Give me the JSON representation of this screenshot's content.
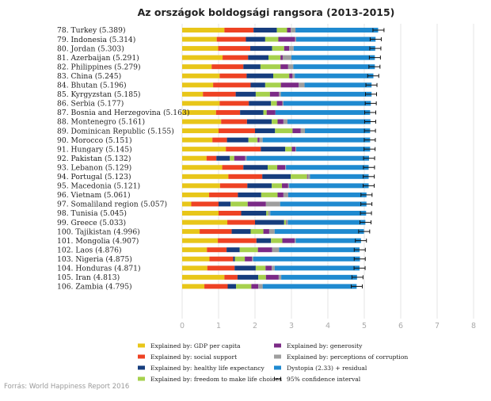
{
  "chart_data": {
    "type": "bar",
    "stacked": true,
    "orientation": "horizontal",
    "title": "Az országok boldogsági rangsora (2013-2015)",
    "xlim": [
      0,
      8
    ],
    "xticks": [
      "0",
      "1",
      "2",
      "3",
      "4",
      "5",
      "6",
      "7",
      "8"
    ],
    "source": "Forrás: World Happiness Report 2016",
    "series": [
      {
        "key": "gdp",
        "name": "Explained by: GDP per capita",
        "color": "#e8c619"
      },
      {
        "key": "social",
        "name": "Explained by: social support",
        "color": "#ee4223"
      },
      {
        "key": "health",
        "name": "Explained by: healthy life expectancy",
        "color": "#163d7d"
      },
      {
        "key": "freedom",
        "name": "Explained by: freedom to make life choices",
        "color": "#a6d14d"
      },
      {
        "key": "generosity",
        "name": "Explained by: generosity",
        "color": "#7b2a86"
      },
      {
        "key": "corruption",
        "name": "Explained by: perceptions of corruption",
        "color": "#9e9e9e"
      },
      {
        "key": "dystopia",
        "name": "Dystopia (2.33) + residual",
        "color": "#1f8ad0"
      }
    ],
    "ci_label": "95% confidence interval",
    "rows": [
      {
        "label": "78.  Turkey (5.389)",
        "total": 5.389,
        "parts": [
          1.16,
          0.8,
          0.64,
          0.28,
          0.1,
          0.13,
          2.27
        ]
      },
      {
        "label": "79.  Indonesia (5.314)",
        "total": 5.314,
        "parts": [
          0.95,
          0.8,
          0.53,
          0.36,
          0.46,
          0.03,
          2.18
        ]
      },
      {
        "label": "80.  Jordan (5.303)",
        "total": 5.303,
        "parts": [
          0.99,
          0.88,
          0.6,
          0.33,
          0.14,
          0.12,
          2.24
        ]
      },
      {
        "label": "81.  Azerbaijan (5.291)",
        "total": 5.291,
        "parts": [
          1.11,
          0.7,
          0.56,
          0.33,
          0.06,
          0.24,
          2.29
        ]
      },
      {
        "label": "82.  Philippines (5.279)",
        "total": 5.279,
        "parts": [
          0.81,
          0.87,
          0.47,
          0.55,
          0.21,
          0.14,
          2.24
        ]
      },
      {
        "label": "83.  China (5.245)",
        "total": 5.245,
        "parts": [
          1.03,
          0.74,
          0.73,
          0.44,
          0.09,
          0.06,
          2.16
        ]
      },
      {
        "label": "84.  Bhutan (5.196)",
        "total": 5.196,
        "parts": [
          0.85,
          1.03,
          0.4,
          0.43,
          0.49,
          0.16,
          1.84
        ]
      },
      {
        "label": "85.  Kyrgyzstan (5.185)",
        "total": 5.185,
        "parts": [
          0.57,
          0.9,
          0.55,
          0.39,
          0.25,
          0.05,
          2.49
        ]
      },
      {
        "label": "86.  Serbia (5.177)",
        "total": 5.177,
        "parts": [
          1.03,
          0.8,
          0.61,
          0.16,
          0.15,
          0.03,
          2.4
        ]
      },
      {
        "label": "87.  Bosnia and Herzegovina (5.163)",
        "total": 5.163,
        "parts": [
          0.93,
          0.66,
          0.64,
          0.09,
          0.24,
          0.0,
          2.6
        ]
      },
      {
        "label": "88.  Montenegro (5.161)",
        "total": 5.161,
        "parts": [
          1.07,
          0.71,
          0.68,
          0.16,
          0.16,
          0.11,
          2.28
        ]
      },
      {
        "label": "89.  Dominican Republic (5.155)",
        "total": 5.155,
        "parts": [
          1.0,
          1.0,
          0.55,
          0.48,
          0.22,
          0.12,
          1.79
        ]
      },
      {
        "label": "90.  Morocco (5.151)",
        "total": 5.151,
        "parts": [
          0.83,
          0.4,
          0.59,
          0.25,
          0.05,
          0.09,
          2.95
        ]
      },
      {
        "label": "91.  Hungary (5.145)",
        "total": 5.145,
        "parts": [
          1.2,
          0.96,
          0.67,
          0.18,
          0.1,
          0.02,
          2.03
        ]
      },
      {
        "label": "92.  Pakistan (5.132)",
        "total": 5.132,
        "parts": [
          0.67,
          0.27,
          0.37,
          0.12,
          0.3,
          0.04,
          3.36
        ]
      },
      {
        "label": "93.  Lebanon (5.129)",
        "total": 5.129,
        "parts": [
          1.1,
          0.58,
          0.67,
          0.26,
          0.22,
          0.02,
          2.27
        ]
      },
      {
        "label": "94.  Portugal (5.123)",
        "total": 5.123,
        "parts": [
          1.27,
          0.93,
          0.78,
          0.45,
          0.02,
          0.06,
          1.61
        ]
      },
      {
        "label": "95.  Macedonia (5.121)",
        "total": 5.121,
        "parts": [
          1.04,
          0.75,
          0.67,
          0.28,
          0.17,
          0.03,
          2.18
        ]
      },
      {
        "label": "96.  Vietnam (5.061)",
        "total": 5.061,
        "parts": [
          0.74,
          0.79,
          0.64,
          0.45,
          0.16,
          0.13,
          2.15
        ]
      },
      {
        "label": "97.  Somaliland region (5.057)",
        "total": 5.057,
        "parts": [
          0.25,
          0.75,
          0.33,
          0.47,
          0.5,
          0.39,
          2.37
        ]
      },
      {
        "label": "98.  Tunisia (5.045)",
        "total": 5.045,
        "parts": [
          1.0,
          0.62,
          0.69,
          0.05,
          0.0,
          0.06,
          2.63
        ]
      },
      {
        "label": "99.  Greece (5.033)",
        "total": 5.033,
        "parts": [
          1.24,
          0.76,
          0.8,
          0.05,
          0.01,
          0.04,
          2.13
        ]
      },
      {
        "label": "100. Tajikistan (4.996)",
        "total": 4.996,
        "parts": [
          0.48,
          0.88,
          0.52,
          0.35,
          0.16,
          0.15,
          2.45
        ]
      },
      {
        "label": "101. Mongolia (4.907)",
        "total": 4.907,
        "parts": [
          0.98,
          1.06,
          0.4,
          0.31,
          0.34,
          0.03,
          1.79
        ]
      },
      {
        "label": "102. Laos (4.876)",
        "total": 4.876,
        "parts": [
          0.68,
          0.54,
          0.36,
          0.5,
          0.39,
          0.19,
          2.21
        ]
      },
      {
        "label": "103. Nigeria (4.875)",
        "total": 4.875,
        "parts": [
          0.75,
          0.65,
          0.05,
          0.27,
          0.2,
          0.03,
          2.93
        ]
      },
      {
        "label": "104. Honduras (4.871)",
        "total": 4.871,
        "parts": [
          0.69,
          0.75,
          0.58,
          0.27,
          0.17,
          0.08,
          2.33
        ]
      },
      {
        "label": "105. Iran (4.813)",
        "total": 4.813,
        "parts": [
          1.16,
          0.36,
          0.57,
          0.21,
          0.35,
          0.07,
          2.08
        ]
      },
      {
        "label": "106. Zambia (4.795)",
        "total": 4.795,
        "parts": [
          0.61,
          0.64,
          0.23,
          0.42,
          0.19,
          0.12,
          2.58
        ]
      }
    ]
  }
}
